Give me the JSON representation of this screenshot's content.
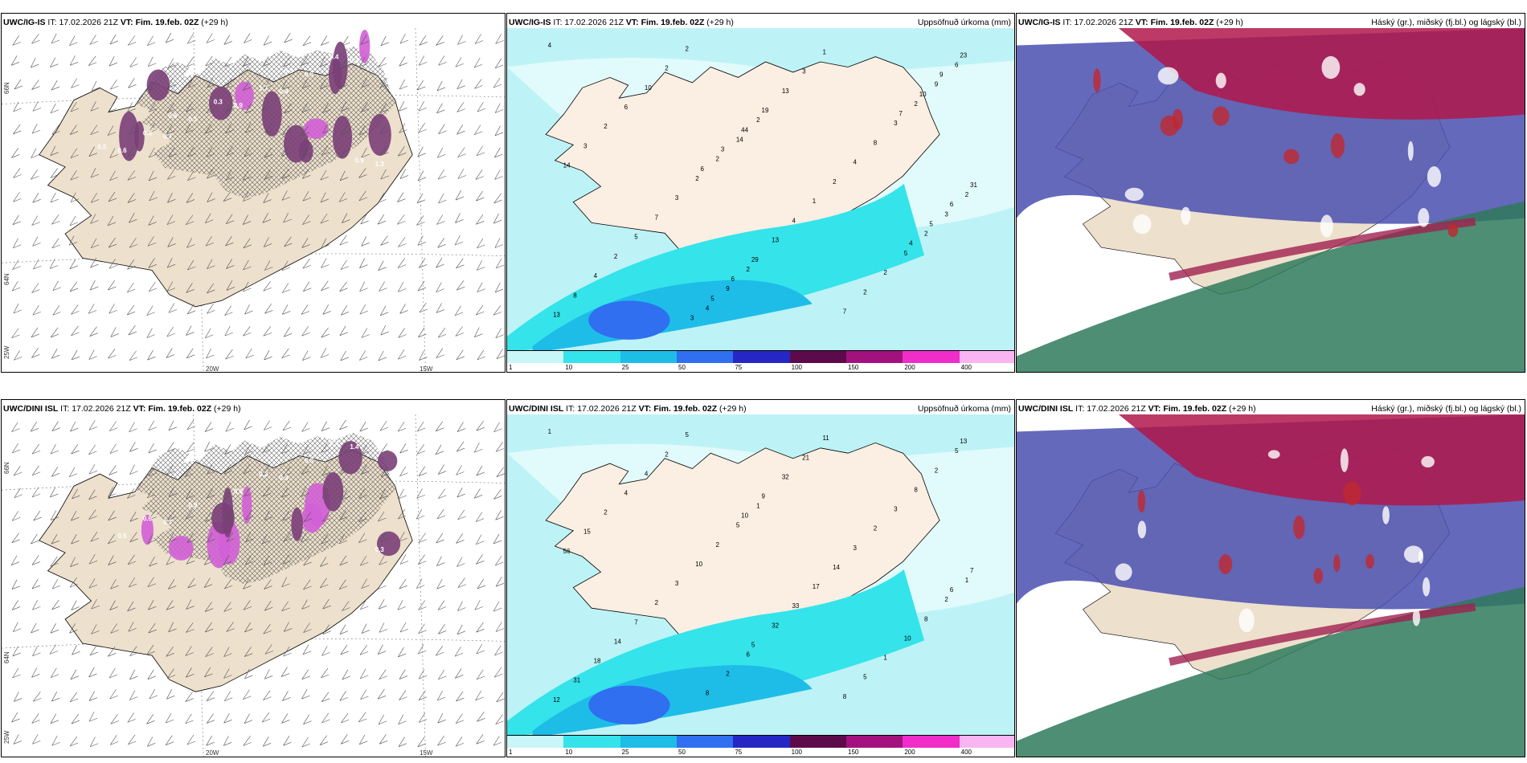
{
  "rows": [
    {
      "model": "UWC/IG-IS",
      "it_label": "IT:",
      "it": "17.02.2026 21Z",
      "vt_label": "VT:",
      "vt": "Fim. 19.feb. 02Z",
      "lead": "(+29 h)",
      "lat_labels": [
        "66N",
        "64N"
      ],
      "lon_labels": [
        "25W",
        "20W",
        "15W"
      ],
      "precip_numbers": [
        "4",
        "2",
        "2",
        "2",
        "6",
        "14",
        "3",
        "9",
        "9",
        "2",
        "2",
        "4",
        "2",
        "2",
        "5",
        "2",
        "3",
        "3",
        "2",
        "2",
        "8",
        "7",
        "2",
        "10",
        "4",
        "5",
        "7",
        "6",
        "2",
        "2",
        "1",
        "2",
        "1",
        "4",
        "3",
        "3",
        "4",
        "8",
        "13",
        "14",
        "13",
        "13",
        "19",
        "31",
        "29",
        "23",
        "44",
        "6",
        "6",
        "9",
        "3",
        "5",
        "5",
        "10",
        "6",
        "4",
        "3",
        "7"
      ],
      "snow_values": [
        "0.3",
        "0.4",
        "0.7",
        "0.3",
        "0.9",
        "0.6",
        "0.3",
        "0.5",
        "1.3",
        "1.7",
        "0.8",
        "0.4",
        "0.3",
        "0.5",
        "0.3",
        "0.6",
        "0.9"
      ]
    },
    {
      "model": "UWC/DINI ISL",
      "it_label": "IT:",
      "it": "17.02.2026 21Z",
      "vt_label": "VT:",
      "vt": "Fim. 19.feb. 02Z",
      "lead": "(+29 h)",
      "lat_labels": [
        "66N",
        "64N"
      ],
      "lon_labels": [
        "25W",
        "20W",
        "15W"
      ],
      "precip_numbers": [
        "1",
        "1",
        "1",
        "6",
        "5",
        "5",
        "2",
        "2",
        "2",
        "2",
        "8",
        "8",
        "8",
        "10",
        "10",
        "5",
        "3",
        "3",
        "1",
        "2",
        "2",
        "2",
        "5",
        "4",
        "3",
        "7",
        "8",
        "4",
        "14",
        "14",
        "11",
        "2",
        "17",
        "18",
        "21",
        "15",
        "33",
        "31",
        "32",
        "56",
        "32",
        "12",
        "9",
        "7",
        "5",
        "13",
        "10",
        "6"
      ],
      "snow_values": [
        "0.3",
        "0.3",
        "0.7",
        "1.4",
        "0.9",
        "0.5",
        "0.3",
        "0.9",
        "0.3",
        "0.3",
        "0.6",
        "0.4"
      ]
    }
  ],
  "precip_title": "Uppsöfnuð úrkoma (mm)",
  "ptype_title": "Háský (gr.), miðský (fj.bl.) og lágský (bl.)",
  "colorbar": {
    "labels": [
      "1",
      "10",
      "25",
      "50",
      "75",
      "100",
      "150",
      "200",
      "400"
    ],
    "colors": [
      "#c9f6f8",
      "#35e3ea",
      "#1dbde8",
      "#2f6ff0",
      "#2626c4",
      "#5d0a4a",
      "#a2117e",
      "#f02cc9",
      "#f8b5f2"
    ]
  }
}
